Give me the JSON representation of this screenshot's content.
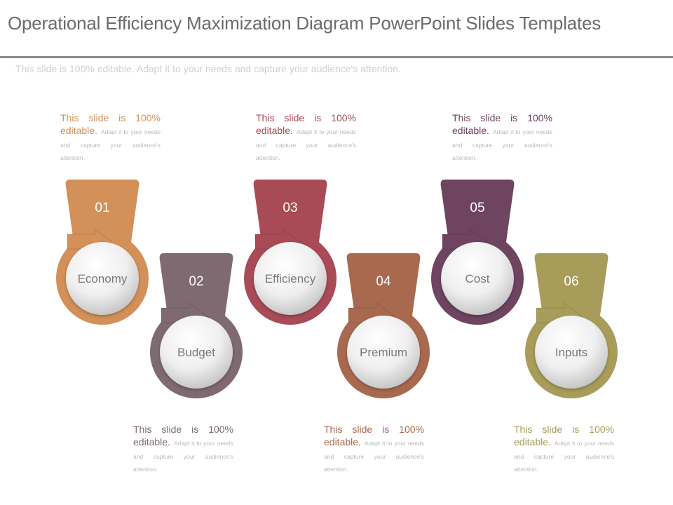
{
  "title": "Operational Efficiency Maximization Diagram PowerPoint Slides Templates",
  "subtitle": "This slide is 100% editable. Adapt it to your needs and capture your audience's attention.",
  "steps": [
    {
      "number": "01",
      "label": "Economy",
      "color": "#D39058"
    },
    {
      "number": "02",
      "label": "Budget",
      "color": "#7E6A70"
    },
    {
      "number": "03",
      "label": "Efficiency",
      "color": "#A94B56"
    },
    {
      "number": "04",
      "label": "Premium",
      "color": "#A8694F"
    },
    {
      "number": "05",
      "label": "Cost",
      "color": "#6E4460"
    },
    {
      "number": "06",
      "label": "Inputs",
      "color": "#A89C5A"
    }
  ],
  "notes": [
    {
      "lead": "This slide is 100% editable.",
      "rest": "Adapt it to your needs and capture your audience's attention.",
      "color": "#D39058"
    },
    {
      "lead": "This slide is 100% editable.",
      "rest": "Adapt it to your needs and capture your audience's attention.",
      "color": "#7E6A70"
    },
    {
      "lead": "This slide is 100% editable.",
      "rest": "Adapt it to your needs and capture your audience's attention.",
      "color": "#A94B56"
    },
    {
      "lead": "This slide is 100% editable.",
      "rest": "Adapt it to your needs and capture your audience's attention.",
      "color": "#A8694F"
    },
    {
      "lead": "This slide is 100% editable.",
      "rest": "Adapt it to your needs and capture your audience's attention.",
      "color": "#6E4460"
    },
    {
      "lead": "This slide is 100% editable.",
      "rest": "Adapt it to your needs and capture your audience's attention.",
      "color": "#A89C5A"
    }
  ]
}
